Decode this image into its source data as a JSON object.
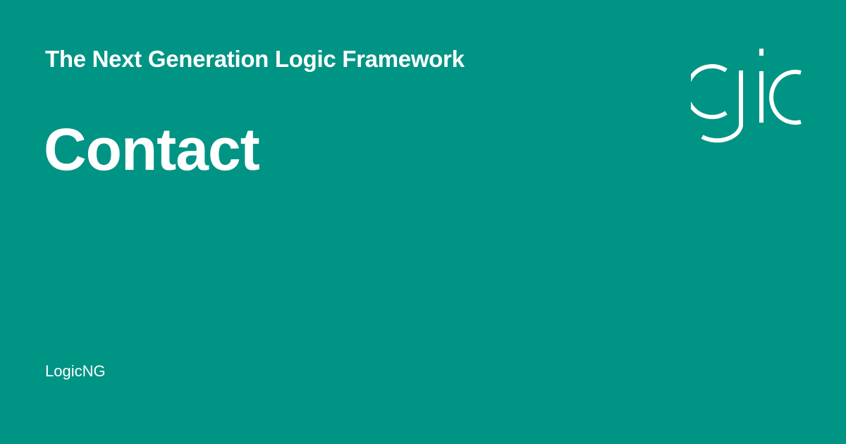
{
  "card": {
    "subtitle": "The Next Generation Logic Framework",
    "title": "Contact",
    "site_name": "LogicNG"
  },
  "logo": {
    "icon": "logicng-gic-logo"
  },
  "colors": {
    "background": "#009485",
    "foreground": "#ffffff"
  }
}
